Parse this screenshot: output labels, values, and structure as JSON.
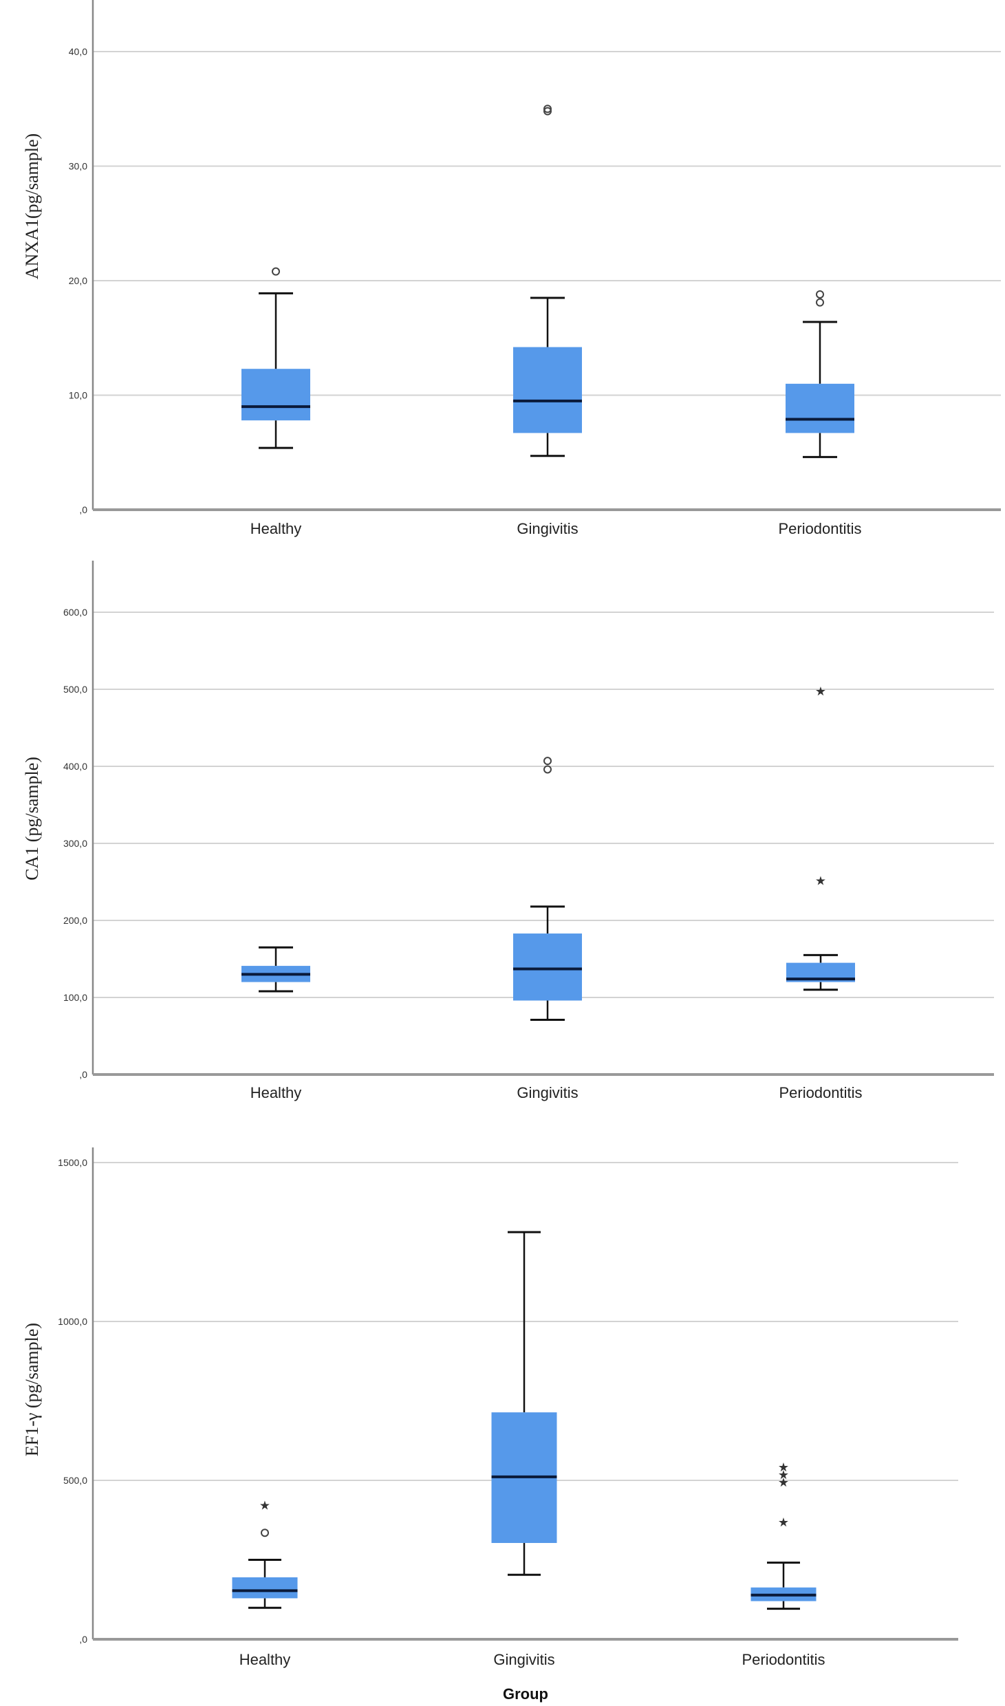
{
  "figure": {
    "x_title": "Group",
    "colors": {
      "box_fill": "#5699EA",
      "median": "#0A1A3A",
      "whisker": "#111111",
      "grid": "#D3D3D3",
      "axis": "#888888"
    }
  },
  "chart_data": [
    {
      "type": "box",
      "title": "",
      "ylabel": "ANXA1(pg/sample)",
      "xlabel": "",
      "categories": [
        "Healthy",
        "Gingivitis",
        "Periodontitis"
      ],
      "ylim": [
        0,
        40
      ],
      "yticks": [
        0,
        10,
        20,
        30,
        40
      ],
      "ytick_labels": [
        ",0",
        "10,0",
        "20,0",
        "30,0",
        "40,0"
      ],
      "grid": true,
      "series": [
        {
          "name": "Healthy",
          "whisker_low": 5.4,
          "q1": 7.8,
          "median": 9.0,
          "q3": 12.3,
          "whisker_high": 18.9,
          "outliers": [
            20.8
          ],
          "extremes": []
        },
        {
          "name": "Gingivitis",
          "whisker_low": 4.7,
          "q1": 6.7,
          "median": 9.5,
          "q3": 14.2,
          "whisker_high": 18.5,
          "outliers": [
            35.0,
            34.8
          ],
          "extremes": []
        },
        {
          "name": "Periodontitis",
          "whisker_low": 4.6,
          "q1": 6.7,
          "median": 7.9,
          "q3": 11.0,
          "whisker_high": 16.4,
          "outliers": [
            18.8,
            18.1
          ],
          "extremes": []
        }
      ]
    },
    {
      "type": "box",
      "title": "",
      "ylabel": "CA1 (pg/sample)",
      "xlabel": "",
      "categories": [
        "Healthy",
        "Gingivitis",
        "Periodontitis"
      ],
      "ylim": [
        0,
        600
      ],
      "yticks": [
        0,
        100,
        200,
        300,
        400,
        500,
        600
      ],
      "ytick_labels": [
        ",0",
        "100,0",
        "200,0",
        "300,0",
        "400,0",
        "500,0",
        "600,0"
      ],
      "grid": true,
      "series": [
        {
          "name": "Healthy",
          "whisker_low": 108,
          "q1": 120,
          "median": 130,
          "q3": 141,
          "whisker_high": 165,
          "outliers": [],
          "extremes": []
        },
        {
          "name": "Gingivitis",
          "whisker_low": 71,
          "q1": 96,
          "median": 137,
          "q3": 183,
          "whisker_high": 218,
          "outliers": [
            407,
            396
          ],
          "extremes": []
        },
        {
          "name": "Periodontitis",
          "whisker_low": 110,
          "q1": 120,
          "median": 124,
          "q3": 145,
          "whisker_high": 155,
          "outliers": [],
          "extremes": [
            500,
            254
          ]
        }
      ]
    },
    {
      "type": "box",
      "title": "",
      "ylabel": "EF1-γ (pg/sample)",
      "xlabel": "Group",
      "categories": [
        "Healthy",
        "Gingivitis",
        "Periodontitis"
      ],
      "ylim": [
        0,
        1500
      ],
      "yticks": [
        0,
        500,
        1000,
        1500
      ],
      "ytick_labels": [
        ",0",
        "500,0",
        "1000,0",
        "1500,0"
      ],
      "grid": true,
      "series": [
        {
          "name": "Healthy",
          "whisker_low": 99,
          "q1": 129,
          "median": 153,
          "q3": 195,
          "whisker_high": 250,
          "outliers": [
            335
          ],
          "extremes": [
            428
          ]
        },
        {
          "name": "Gingivitis",
          "whisker_low": 203,
          "q1": 303,
          "median": 511,
          "q3": 714,
          "whisker_high": 1281,
          "outliers": [],
          "extremes": []
        },
        {
          "name": "Periodontitis",
          "whisker_low": 96,
          "q1": 120,
          "median": 139,
          "q3": 163,
          "whisker_high": 241,
          "outliers": [],
          "extremes": [
            548,
            524,
            500,
            374
          ]
        }
      ]
    }
  ]
}
